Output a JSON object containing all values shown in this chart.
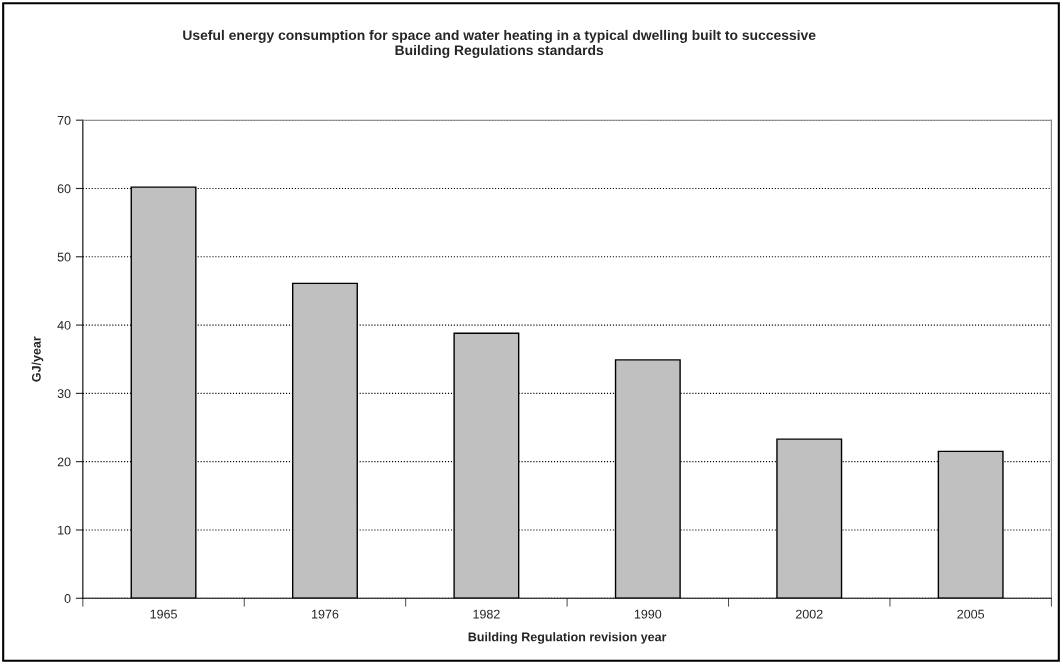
{
  "chart_data": {
    "type": "bar",
    "title": "Useful energy consumption for space and water heating in a typical dwelling built to successive\nBuilding Regulations standards",
    "xlabel": "Building Regulation revision year",
    "ylabel": "GJ/year",
    "categories": [
      "1965",
      "1976",
      "1982",
      "1990",
      "2002",
      "2005"
    ],
    "values": [
      60.2,
      46.1,
      38.8,
      34.9,
      23.3,
      21.5
    ],
    "color": "#c0c0c0",
    "ylim": [
      0,
      70
    ],
    "yticks": [
      0,
      10,
      20,
      30,
      40,
      50,
      60,
      70
    ],
    "grid": "y",
    "line_style": "dotted"
  }
}
